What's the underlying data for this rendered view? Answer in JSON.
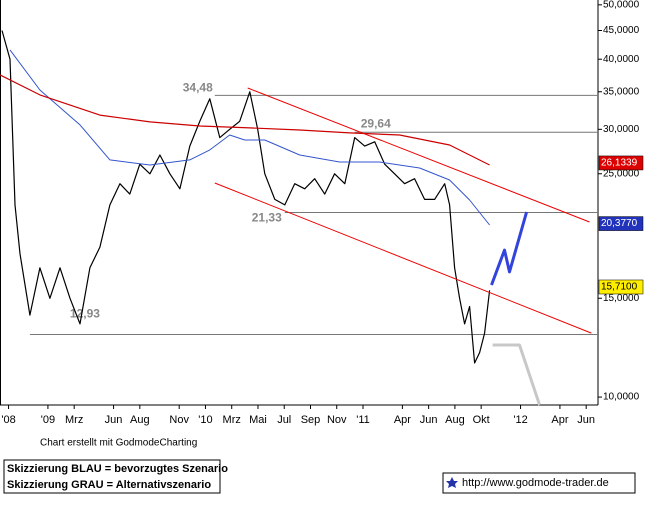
{
  "chart_data": {
    "type": "line",
    "log_scale": true,
    "xlim": [
      8.35,
      53.9
    ],
    "ylim": [
      9680,
      51000
    ],
    "xticks": [
      {
        "value": 9,
        "label": "'08"
      },
      {
        "value": 12,
        "label": "'09"
      },
      {
        "value": 14,
        "label": "Mrz"
      },
      {
        "value": 17,
        "label": "Jun"
      },
      {
        "value": 19,
        "label": "Aug"
      },
      {
        "value": 22,
        "label": "Nov"
      },
      {
        "value": 24,
        "label": "'10"
      },
      {
        "value": 26,
        "label": "Mrz"
      },
      {
        "value": 28,
        "label": "Mai"
      },
      {
        "value": 30,
        "label": "Jul"
      },
      {
        "value": 32,
        "label": "Sep"
      },
      {
        "value": 34,
        "label": "Nov"
      },
      {
        "value": 36,
        "label": "'11"
      },
      {
        "value": 39,
        "label": "Apr"
      },
      {
        "value": 41,
        "label": "Jun"
      },
      {
        "value": 43,
        "label": "Aug"
      },
      {
        "value": 45,
        "label": "Okt"
      },
      {
        "value": 48,
        "label": "'12"
      },
      {
        "value": 51,
        "label": "Apr"
      },
      {
        "value": 53,
        "label": "Jun"
      }
    ],
    "yticks": [
      {
        "value": 50000,
        "label": "50,0000"
      },
      {
        "value": 45000,
        "label": "45,0000"
      },
      {
        "value": 40000,
        "label": "40,0000"
      },
      {
        "value": 35000,
        "label": "35,0000"
      },
      {
        "value": 30000,
        "label": "30,0000"
      },
      {
        "value": 25000,
        "label": "25,0000"
      },
      {
        "value": 15000,
        "label": "15,0000"
      },
      {
        "value": 10000,
        "label": "10,0000"
      }
    ],
    "series": [
      {
        "color": "#000000",
        "width": 1.2,
        "x": [
          8.5,
          9.11,
          9.49,
          9.87,
          10.63,
          11.39,
          12.15,
          12.92,
          13.68,
          14.44,
          15.2,
          15.96,
          16.72,
          17.48,
          18.24,
          19.0,
          19.77,
          20.53,
          21.29,
          22.05,
          22.81,
          23.57,
          24.33,
          25.09,
          25.85,
          26.61,
          27.38,
          27.98,
          28.52,
          29.28,
          30.04,
          30.8,
          31.56,
          32.32,
          33.08,
          33.84,
          34.61,
          35.37,
          36.13,
          36.89,
          37.65,
          38.41,
          39.17,
          39.93,
          40.69,
          41.45,
          42.22,
          42.6,
          42.98,
          43.36,
          43.74,
          44.12,
          44.5,
          44.88,
          45.26,
          45.64
        ],
        "values": [
          45000,
          40000,
          22000,
          18000,
          14000,
          17000,
          15000,
          17000,
          15000,
          13500,
          17000,
          18500,
          22000,
          24000,
          23000,
          26000,
          25000,
          27000,
          25000,
          23500,
          28000,
          31000,
          34000,
          29000,
          30000,
          31000,
          35000,
          30000,
          25000,
          22500,
          22000,
          24000,
          23500,
          24500,
          23000,
          25000,
          24000,
          29000,
          28000,
          28500,
          26000,
          25000,
          24000,
          24500,
          22500,
          22500,
          24000,
          22000,
          17000,
          15000,
          13500,
          14500,
          11500,
          12000,
          13000,
          15500
        ]
      },
      {
        "color": "#3355cc",
        "width": 1,
        "x": [
          9.11,
          11.39,
          14.44,
          16.72,
          19.77,
          22.81,
          24.33,
          25.85,
          26.99,
          28.52,
          31.18,
          34.22,
          37.27,
          40.31,
          42.6,
          44.12,
          45.64
        ],
        "values": [
          41560,
          35260,
          30550,
          26460,
          25920,
          26460,
          27570,
          29310,
          28720,
          28720,
          27000,
          26240,
          26240,
          25600,
          24370,
          22450,
          20260
        ]
      },
      {
        "color": "#cc0000",
        "width": 1.2,
        "x": [
          8.35,
          11.39,
          15.96,
          19.77,
          23.57,
          27.38,
          31.18,
          34.99,
          38.79,
          42.6,
          45.64
        ],
        "values": [
          37500,
          34550,
          31800,
          30930,
          30410,
          30170,
          29920,
          29560,
          29310,
          28130,
          25920
        ]
      },
      {
        "color": "#ee0000",
        "width": 1,
        "x": [
          27.22,
          53.25
        ],
        "values": [
          35550,
          20510
        ]
      },
      {
        "color": "#ee0000",
        "width": 1,
        "x": [
          24.71,
          53.4
        ],
        "values": [
          24070,
          13000
        ]
      },
      {
        "color": "#3344dd",
        "width": 3,
        "x": [
          45.79,
          46.78,
          47.16,
          48.46
        ],
        "values": [
          15840,
          18280,
          16710,
          21370
        ]
      },
      {
        "color": "#c8c8c8",
        "width": 3,
        "x": [
          45.87,
          47.92,
          49.45
        ],
        "values": [
          12380,
          12380,
          9680
        ]
      }
    ],
    "levels": [
      {
        "value": 34480,
        "label": "34,48",
        "x": [
          24.71,
          53.9
        ]
      },
      {
        "value": 29640,
        "label": "29,64",
        "x": [
          35.37,
          53.9
        ]
      },
      {
        "value": 21330,
        "label": "21,33",
        "x": [
          30.04,
          53.9
        ]
      },
      {
        "value": 12930,
        "label": "12,93",
        "x": [
          10.63,
          53.9
        ]
      }
    ],
    "last_values": [
      {
        "value": 26133.9,
        "label": "26,1339",
        "color": "#dd0000"
      },
      {
        "value": 20377,
        "label": "20,3770",
        "color": "#2233bb"
      },
      {
        "value": 15710,
        "label": "15,7100",
        "color": "#ffee00"
      }
    ],
    "credit": "Chart erstellt mit GodmodeCharting",
    "legend_lines": [
      "Skizzierung BLAU = bevorzugtes Szenario",
      "Skizzierung GRAU = Alternativszenario"
    ],
    "url": "http://www.godmode-trader.de"
  }
}
